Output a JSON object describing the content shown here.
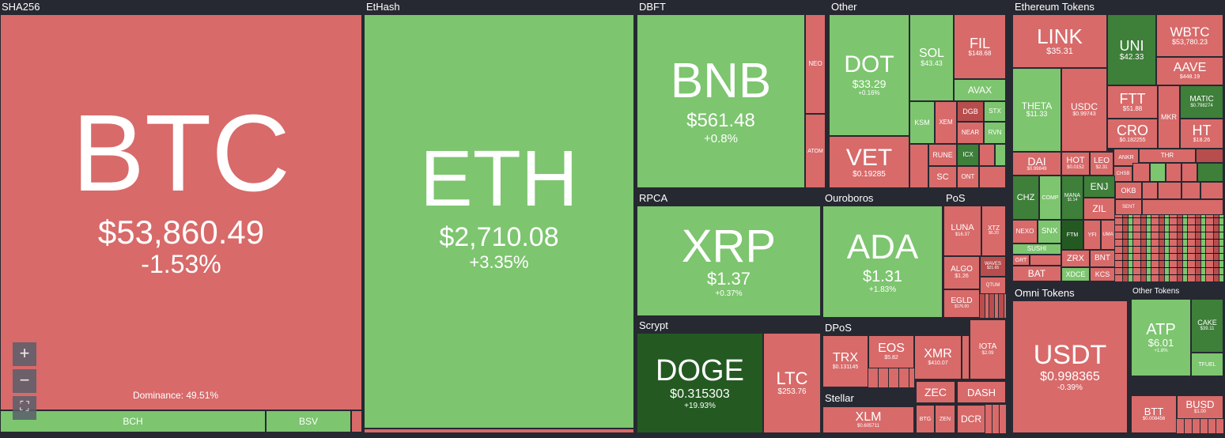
{
  "sections": {
    "sha256": "SHA256",
    "ethash": "EtHash",
    "dbft": "DBFT",
    "other": "Other",
    "eth_tokens": "Ethereum Tokens",
    "rpca": "RPCA",
    "ouroboros": "Ouroboros",
    "pos": "PoS",
    "scrypt": "Scrypt",
    "dpos": "DPoS",
    "stellar": "Stellar",
    "omni": "Omni Tokens",
    "other_tokens": "Other Tokens"
  },
  "dominance": "Dominance: 49.51%",
  "controls": {
    "zoom_in": "+",
    "zoom_out": "−",
    "fullscreen": "⛶"
  },
  "tiles": {
    "btc": {
      "sym": "BTC",
      "price": "$53,860.49",
      "chg": "-1.53%"
    },
    "bch": {
      "sym": "BCH"
    },
    "bsv": {
      "sym": "BSV"
    },
    "eth": {
      "sym": "ETH",
      "price": "$2,710.08",
      "chg": "+3.35%"
    },
    "bnb": {
      "sym": "BNB",
      "price": "$561.48",
      "chg": "+0.8%"
    },
    "neo": {
      "sym": "NEO"
    },
    "atom": {
      "sym": "ATOM"
    },
    "dot": {
      "sym": "DOT",
      "price": "$33.29",
      "chg": "+0.16%"
    },
    "vet": {
      "sym": "VET",
      "price": "$0.19285"
    },
    "sol": {
      "sym": "SOL",
      "price": "$43.43"
    },
    "fil": {
      "sym": "FIL",
      "price": "$148.68"
    },
    "avax": {
      "sym": "AVAX"
    },
    "ksm": {
      "sym": "KSM"
    },
    "xem": {
      "sym": "XEM"
    },
    "dgb": {
      "sym": "DGB"
    },
    "stx": {
      "sym": "STX"
    },
    "near": {
      "sym": "NEAR"
    },
    "rvn": {
      "sym": "RVN"
    },
    "rune": {
      "sym": "RUNE"
    },
    "icx": {
      "sym": "ICX"
    },
    "sc": {
      "sym": "SC"
    },
    "ont": {
      "sym": "ONT"
    },
    "link": {
      "sym": "LINK",
      "price": "$35.31"
    },
    "uni": {
      "sym": "UNI",
      "price": "$42.33"
    },
    "wbtc": {
      "sym": "WBTC",
      "price": "$53,780.23"
    },
    "aave": {
      "sym": "AAVE",
      "price": "$448.19"
    },
    "theta": {
      "sym": "THETA",
      "price": "$11.33"
    },
    "usdc": {
      "sym": "USDC",
      "price": "$0.99743"
    },
    "ftt": {
      "sym": "FTT",
      "price": "$51.88"
    },
    "matic": {
      "sym": "MATIC",
      "price": "$0.798274"
    },
    "mkr": {
      "sym": "MKR"
    },
    "cro": {
      "sym": "CRO",
      "price": "$0.182255"
    },
    "ht": {
      "sym": "HT",
      "price": "$18.26"
    },
    "dai": {
      "sym": "DAI",
      "price": "$0.99849"
    },
    "hot": {
      "sym": "HOT",
      "price": "$0.0152"
    },
    "leo": {
      "sym": "LEO",
      "price": "$2.31"
    },
    "ankr": {
      "sym": "ANKR"
    },
    "thr": {
      "sym": "THR"
    },
    "chsb": {
      "sym": "CHSB"
    },
    "chz": {
      "sym": "CHZ"
    },
    "comp": {
      "sym": "COMP"
    },
    "mana": {
      "sym": "MANA",
      "price": "$1.14"
    },
    "enj": {
      "sym": "ENJ"
    },
    "okb": {
      "sym": "OKB"
    },
    "zil": {
      "sym": "ZIL"
    },
    "sent": {
      "sym": "SENT"
    },
    "nexo": {
      "sym": "NEXO"
    },
    "snx": {
      "sym": "SNX"
    },
    "ftm": {
      "sym": "FTM"
    },
    "yfi": {
      "sym": "YFI"
    },
    "uma": {
      "sym": "UMA"
    },
    "sushi": {
      "sym": "SUSHI"
    },
    "grt": {
      "sym": "GRT"
    },
    "zrx": {
      "sym": "ZRX"
    },
    "bnt": {
      "sym": "BNT"
    },
    "bat": {
      "sym": "BAT"
    },
    "xdce": {
      "sym": "XDCE"
    },
    "kcs": {
      "sym": "KCS"
    },
    "xrp": {
      "sym": "XRP",
      "price": "$1.37",
      "chg": "+0.37%"
    },
    "ada": {
      "sym": "ADA",
      "price": "$1.31",
      "chg": "+1.83%"
    },
    "luna": {
      "sym": "LUNA",
      "price": "$16.37"
    },
    "xtz": {
      "sym": "XTZ",
      "price": "$6.20"
    },
    "algo": {
      "sym": "ALGO",
      "price": "$1.26"
    },
    "waves": {
      "sym": "WAVES",
      "price": "$21.65"
    },
    "qtum": {
      "sym": "QTUM"
    },
    "egld": {
      "sym": "EGLD",
      "price": "$176.00"
    },
    "doge": {
      "sym": "DOGE",
      "price": "$0.315303",
      "chg": "+19.93%"
    },
    "ltc": {
      "sym": "LTC",
      "price": "$253.76"
    },
    "trx": {
      "sym": "TRX",
      "price": "$0.131145"
    },
    "eos": {
      "sym": "EOS",
      "price": "$5.82"
    },
    "xmr": {
      "sym": "XMR",
      "price": "$410.07"
    },
    "iota": {
      "sym": "IOTA",
      "price": "$2.09"
    },
    "zec": {
      "sym": "ZEC"
    },
    "dash": {
      "sym": "DASH"
    },
    "btg": {
      "sym": "BTG"
    },
    "zen": {
      "sym": "ZEN"
    },
    "dcr": {
      "sym": "DCR"
    },
    "xlm": {
      "sym": "XLM",
      "price": "$0.605711"
    },
    "usdt": {
      "sym": "USDT",
      "price": "$0.998365",
      "chg": "-0.39%"
    },
    "atp": {
      "sym": "ATP",
      "price": "$6.01",
      "chg": "+1.8%"
    },
    "cake": {
      "sym": "CAKE",
      "price": "$39.11"
    },
    "tfuel": {
      "sym": "TFUEL"
    },
    "btt": {
      "sym": "BTT",
      "price": "$0.008456"
    },
    "busd": {
      "sym": "BUSD",
      "price": "$1.00"
    }
  }
}
